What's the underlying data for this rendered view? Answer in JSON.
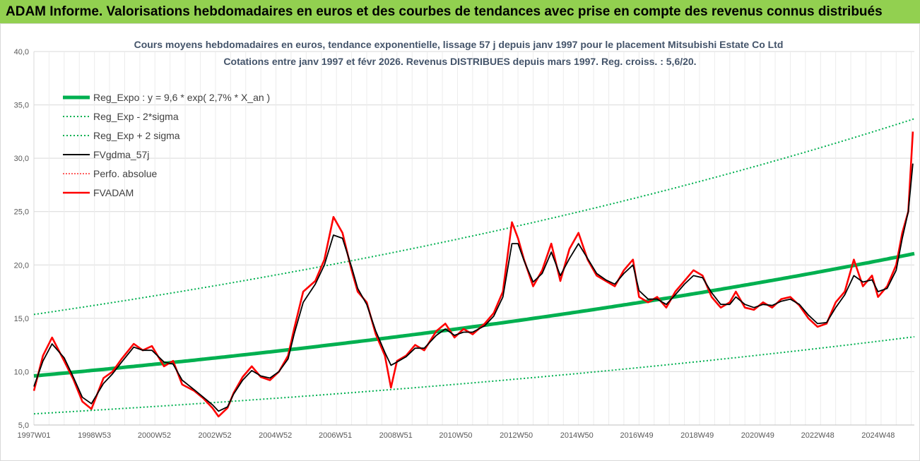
{
  "banner": {
    "title": "ADAM Informe. Valorisations hebdomadaires en euros et des courbes de tendances avec prise en compte des revenus connus distribués"
  },
  "colors": {
    "banner_bg": "#92d050",
    "reg": "#00b050",
    "fvgdma": "#000000",
    "perfo": "#ff0000",
    "fvadam": "#ff0000",
    "grid": "#d9d9d9"
  },
  "chart_data": {
    "type": "line",
    "title_line1": "Cours moyens hebdomadaires en euros, tendance exponentielle, lissage 57 j depuis janv 1997 pour le placement Mitsubishi Estate Co Ltd",
    "title_line2": "Cotations entre janv 1997 et févr 2026. Revenus DISTRIBUES depuis mars 1997. Reg. croiss. : 5,6/20.",
    "xlabel": "",
    "ylabel": "",
    "ylim": [
      5,
      40
    ],
    "xlim": [
      1997.0,
      2026.1
    ],
    "yticks": [
      "5,0",
      "10,0",
      "15,0",
      "20,0",
      "25,0",
      "30,0",
      "35,0",
      "40,0"
    ],
    "xticks": [
      "1997W01",
      "1998W53",
      "2000W52",
      "2002W52",
      "2004W52",
      "2006W51",
      "2008W51",
      "2010W50",
      "2012W50",
      "2014W50",
      "2016W49",
      "2018W49",
      "2020W49",
      "2022W48",
      "2024W48"
    ],
    "grid": true,
    "legend_position": "top-left",
    "legend": [
      {
        "key": "reg",
        "label": "Reg_Expo : y = 9,6 * exp( 2,7% *  X_an )",
        "style": "thick"
      },
      {
        "key": "low",
        "label": "Reg_Exp - 2*sigma",
        "style": "dotted"
      },
      {
        "key": "high",
        "label": "Reg_Exp + 2 sigma",
        "style": "dotted"
      },
      {
        "key": "fvgdma",
        "label": "FVgdma_57j",
        "style": "solid"
      },
      {
        "key": "perfo",
        "label": "Perfo. absolue",
        "style": "dotted"
      },
      {
        "key": "fvadam",
        "label": "FVADAM",
        "style": "thick"
      }
    ],
    "regression": {
      "a": 9.6,
      "rate": 0.027,
      "low_factor": 0.63,
      "high_factor": 1.6
    },
    "series": [
      {
        "name": "FVADAM",
        "x": [
          1997.0,
          1997.3,
          1997.6,
          1998.0,
          1998.3,
          1998.6,
          1998.9,
          1999.3,
          1999.6,
          1999.9,
          2000.3,
          2000.6,
          2000.9,
          2001.3,
          2001.6,
          2001.9,
          2002.3,
          2002.6,
          2002.9,
          2003.1,
          2003.4,
          2003.6,
          2003.9,
          2004.2,
          2004.5,
          2004.8,
          2005.1,
          2005.4,
          2005.6,
          2005.9,
          2006.3,
          2006.6,
          2006.9,
          2007.2,
          2007.5,
          2007.7,
          2008.0,
          2008.3,
          2008.6,
          2008.8,
          2009.0,
          2009.3,
          2009.6,
          2009.9,
          2010.3,
          2010.6,
          2010.9,
          2011.2,
          2011.5,
          2011.9,
          2012.2,
          2012.5,
          2012.8,
          2013.0,
          2013.2,
          2013.5,
          2013.8,
          2014.1,
          2014.4,
          2014.7,
          2015.0,
          2015.3,
          2015.6,
          2015.9,
          2016.2,
          2016.5,
          2016.8,
          2017.0,
          2017.3,
          2017.6,
          2017.9,
          2018.2,
          2018.5,
          2018.8,
          2019.1,
          2019.4,
          2019.7,
          2020.0,
          2020.2,
          2020.5,
          2020.8,
          2021.1,
          2021.4,
          2021.7,
          2022.0,
          2022.3,
          2022.6,
          2022.9,
          2023.2,
          2023.5,
          2023.8,
          2024.1,
          2024.4,
          2024.7,
          2024.9,
          2025.2,
          2025.5,
          2025.7,
          2025.9,
          2026.05
        ],
        "values": [
          8.2,
          11.5,
          13.2,
          11.0,
          9.3,
          7.2,
          6.5,
          9.4,
          10.0,
          11.2,
          12.6,
          12.0,
          12.4,
          10.5,
          11.0,
          8.8,
          8.2,
          7.5,
          6.6,
          5.8,
          6.6,
          8.0,
          9.5,
          10.5,
          9.5,
          9.2,
          10.0,
          11.5,
          14.0,
          17.5,
          18.5,
          20.5,
          24.5,
          23.0,
          19.5,
          17.5,
          16.5,
          13.5,
          11.5,
          8.5,
          11.0,
          11.5,
          12.5,
          12.0,
          13.8,
          14.5,
          13.2,
          14.0,
          13.5,
          14.5,
          15.5,
          17.5,
          24.0,
          22.5,
          20.5,
          18.0,
          19.5,
          22.0,
          18.5,
          21.5,
          23.0,
          20.5,
          19.0,
          18.5,
          18.0,
          19.5,
          20.5,
          17.0,
          16.5,
          17.0,
          16.0,
          17.5,
          18.5,
          19.5,
          19.0,
          17.0,
          16.0,
          16.5,
          17.5,
          16.0,
          15.8,
          16.5,
          16.0,
          16.8,
          17.0,
          16.2,
          15.0,
          14.2,
          14.5,
          16.5,
          17.5,
          20.5,
          18.0,
          19.0,
          17.0,
          18.0,
          20.0,
          23.0,
          25.0,
          32.5
        ]
      },
      {
        "name": "FVgdma_57j",
        "x": [
          1997.0,
          1997.3,
          1997.6,
          1998.0,
          1998.3,
          1998.6,
          1998.9,
          1999.3,
          1999.6,
          1999.9,
          2000.3,
          2000.6,
          2000.9,
          2001.3,
          2001.6,
          2001.9,
          2002.3,
          2002.6,
          2002.9,
          2003.1,
          2003.4,
          2003.6,
          2003.9,
          2004.2,
          2004.5,
          2004.8,
          2005.1,
          2005.4,
          2005.6,
          2005.9,
          2006.3,
          2006.6,
          2006.9,
          2007.2,
          2007.5,
          2007.7,
          2008.0,
          2008.3,
          2008.6,
          2008.8,
          2009.0,
          2009.3,
          2009.6,
          2009.9,
          2010.3,
          2010.6,
          2010.9,
          2011.2,
          2011.5,
          2011.9,
          2012.2,
          2012.5,
          2012.8,
          2013.0,
          2013.2,
          2013.5,
          2013.8,
          2014.1,
          2014.4,
          2014.7,
          2015.0,
          2015.3,
          2015.6,
          2015.9,
          2016.2,
          2016.5,
          2016.8,
          2017.0,
          2017.3,
          2017.6,
          2017.9,
          2018.2,
          2018.5,
          2018.8,
          2019.1,
          2019.4,
          2019.7,
          2020.0,
          2020.2,
          2020.5,
          2020.8,
          2021.1,
          2021.4,
          2021.7,
          2022.0,
          2022.3,
          2022.6,
          2022.9,
          2023.2,
          2023.5,
          2023.8,
          2024.1,
          2024.4,
          2024.7,
          2024.9,
          2025.2,
          2025.5,
          2025.7,
          2025.9,
          2026.05
        ],
        "values": [
          8.6,
          11.0,
          12.6,
          11.3,
          9.5,
          7.6,
          7.0,
          8.9,
          9.8,
          10.9,
          12.3,
          12.0,
          12.0,
          10.9,
          10.7,
          9.2,
          8.3,
          7.6,
          6.9,
          6.3,
          6.7,
          7.9,
          9.2,
          10.1,
          9.6,
          9.4,
          10.0,
          11.2,
          13.5,
          16.5,
          18.2,
          20.0,
          22.8,
          22.5,
          19.8,
          17.8,
          16.3,
          13.8,
          11.8,
          10.6,
          10.9,
          11.4,
          12.2,
          12.2,
          13.4,
          14.0,
          13.4,
          13.7,
          13.7,
          14.3,
          15.2,
          17.0,
          22.0,
          22.0,
          20.4,
          18.4,
          19.2,
          21.2,
          19.0,
          20.6,
          22.0,
          20.6,
          19.2,
          18.6,
          18.2,
          19.2,
          20.0,
          17.6,
          16.8,
          16.8,
          16.3,
          17.2,
          18.2,
          19.0,
          18.8,
          17.4,
          16.3,
          16.3,
          17.0,
          16.3,
          16.0,
          16.3,
          16.2,
          16.6,
          16.8,
          16.3,
          15.3,
          14.5,
          14.6,
          16.0,
          17.2,
          19.0,
          18.4,
          18.6,
          17.5,
          17.8,
          19.5,
          22.5,
          25.0,
          29.5
        ]
      }
    ]
  }
}
